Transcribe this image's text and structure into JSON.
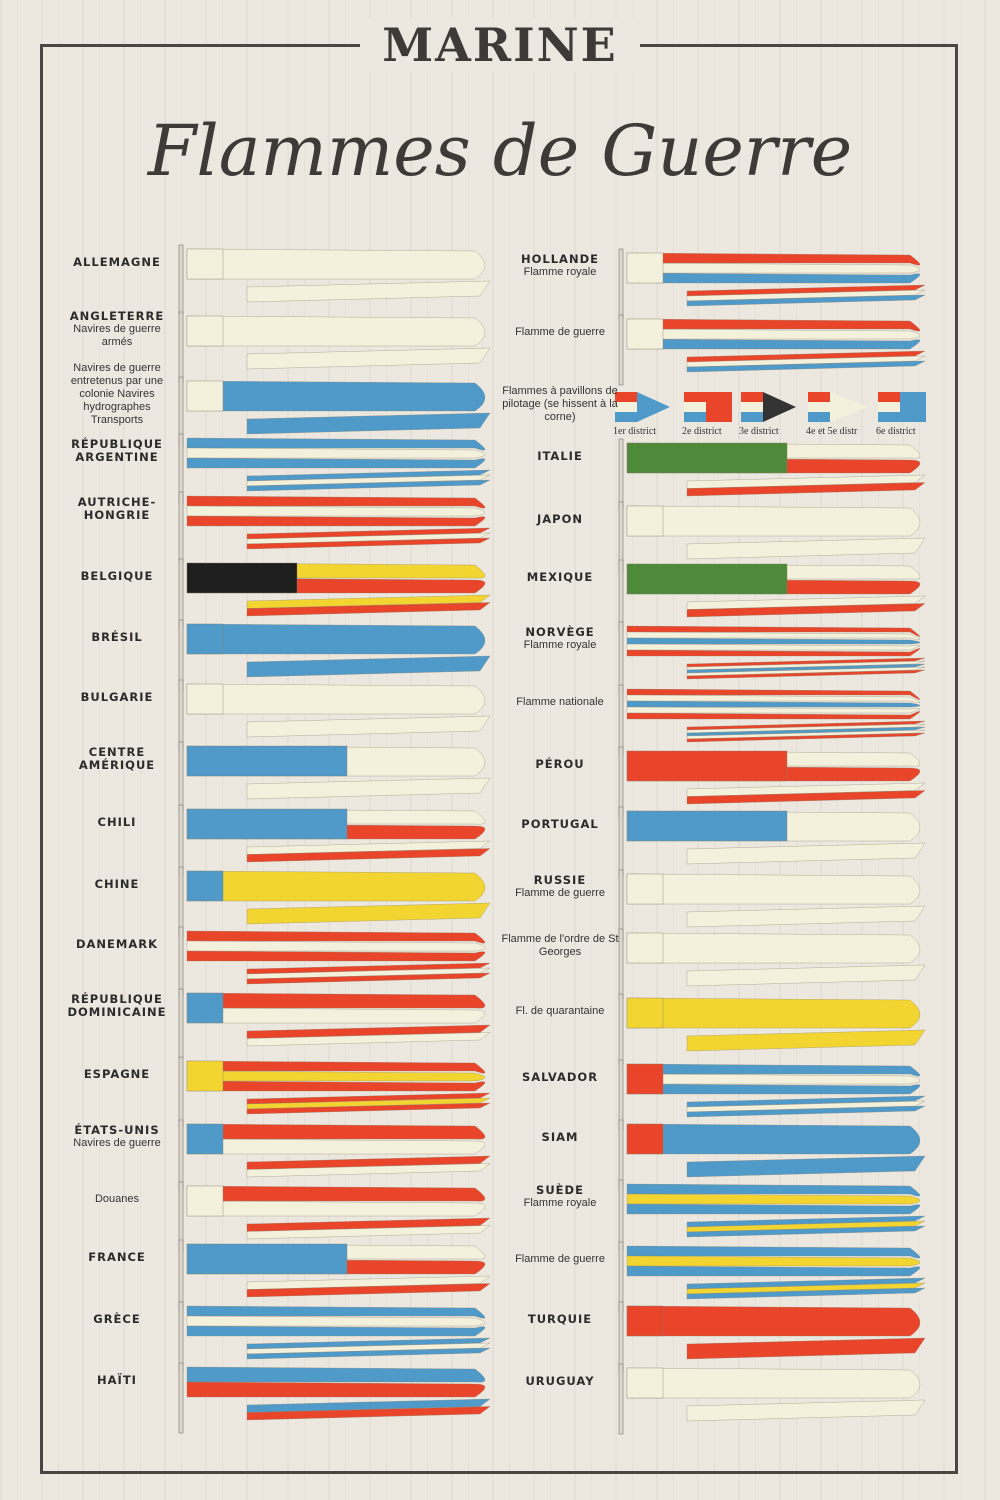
{
  "title": "MARINE",
  "subtitle": "Flammes de Guerre",
  "colors": {
    "red": "#e8452a",
    "blue": "#4f9ac9",
    "white": "#f3f0dc",
    "yellow": "#f2d531",
    "green": "#4e8a3a",
    "black": "#1e1e1e"
  },
  "left": [
    {
      "main": "ALLEMAGNE",
      "sub": "",
      "hoist": "white",
      "stripes": [
        "white"
      ]
    },
    {
      "main": "ANGLETERRE",
      "sub": "Navires de guerre armés",
      "hoist": "white",
      "stripes": [
        "white"
      ]
    },
    {
      "main": "",
      "sub": "Navires de guerre entretenus par une colonie Navires hydrographes Transports",
      "hoist": "white",
      "stripes": [
        "blue"
      ]
    },
    {
      "main": "RÉPUBLIQUE ARGENTINE",
      "sub": "",
      "hoist": "blue",
      "stripes": [
        "blue",
        "white",
        "blue"
      ]
    },
    {
      "main": "AUTRICHE-HONGRIE",
      "sub": "",
      "hoist": "red",
      "stripes": [
        "red",
        "white",
        "red"
      ]
    },
    {
      "main": "BELGIQUE",
      "sub": "",
      "hoist": "black",
      "stripes": [
        "yellow",
        "red"
      ]
    },
    {
      "main": "BRÉSIL",
      "sub": "",
      "hoist": "blue",
      "stripes": [
        "blue"
      ]
    },
    {
      "main": "BULGARIE",
      "sub": "",
      "hoist": "white",
      "stripes": [
        "white"
      ]
    },
    {
      "main": "CENTRE AMÉRIQUE",
      "sub": "",
      "hoist": "blue",
      "stripes": [
        "white"
      ]
    },
    {
      "main": "CHILI",
      "sub": "",
      "hoist": "blue",
      "stripes": [
        "white",
        "red"
      ]
    },
    {
      "main": "CHINE",
      "sub": "",
      "hoist": "blue",
      "stripes": [
        "yellow"
      ]
    },
    {
      "main": "DANEMARK",
      "sub": "",
      "hoist": "red",
      "stripes": [
        "red",
        "white",
        "red"
      ]
    },
    {
      "main": "RÉPUBLIQUE DOMINICAINE",
      "sub": "",
      "hoist": "blue",
      "stripes": [
        "red",
        "white"
      ]
    },
    {
      "main": "ESPAGNE",
      "sub": "",
      "hoist": "yellow",
      "stripes": [
        "red",
        "yellow",
        "red"
      ]
    },
    {
      "main": "ÉTATS-UNIS",
      "sub": "Navires de guerre",
      "hoist": "blue",
      "stripes": [
        "red",
        "white"
      ]
    },
    {
      "main": "",
      "sub": "Douanes",
      "hoist": "white",
      "stripes": [
        "red",
        "white"
      ]
    },
    {
      "main": "FRANCE",
      "sub": "",
      "hoist": "blue",
      "stripes": [
        "white",
        "red"
      ]
    },
    {
      "main": "GRÈCE",
      "sub": "",
      "hoist": "blue",
      "stripes": [
        "blue",
        "white",
        "blue"
      ]
    },
    {
      "main": "HAÏTI",
      "sub": "",
      "hoist": "blue",
      "stripes": [
        "blue",
        "red"
      ]
    }
  ],
  "right": [
    {
      "main": "HOLLANDE",
      "sub": "Flamme royale",
      "hoist": "white",
      "stripes": [
        "red",
        "white",
        "blue"
      ]
    },
    {
      "main": "",
      "sub": "Flamme de guerre",
      "hoist": "white",
      "stripes": [
        "red",
        "white",
        "blue"
      ]
    },
    {
      "main": "",
      "sub": "Flammes à pavillons de pilotage (se hissent à la corne)",
      "hoist": "",
      "stripes": []
    },
    {
      "main": "ITALIE",
      "sub": "",
      "hoist": "green",
      "stripes": [
        "white",
        "red"
      ]
    },
    {
      "main": "JAPON",
      "sub": "",
      "hoist": "white",
      "stripes": [
        "white"
      ]
    },
    {
      "main": "MEXIQUE",
      "sub": "",
      "hoist": "green",
      "stripes": [
        "white",
        "red"
      ]
    },
    {
      "main": "NORVÈGE",
      "sub": "Flamme royale",
      "hoist": "red",
      "stripes": [
        "red",
        "white",
        "blue",
        "white",
        "red"
      ]
    },
    {
      "main": "",
      "sub": "Flamme nationale",
      "hoist": "red",
      "stripes": [
        "red",
        "white",
        "blue",
        "white",
        "red"
      ]
    },
    {
      "main": "PÉROU",
      "sub": "",
      "hoist": "red",
      "stripes": [
        "white",
        "red"
      ]
    },
    {
      "main": "PORTUGAL",
      "sub": "",
      "hoist": "blue",
      "stripes": [
        "white"
      ]
    },
    {
      "main": "RUSSIE",
      "sub": "Flamme de guerre",
      "hoist": "white",
      "stripes": [
        "white"
      ]
    },
    {
      "main": "",
      "sub": "Flamme de l'ordre de St Georges",
      "hoist": "white",
      "stripes": [
        "white"
      ]
    },
    {
      "main": "",
      "sub": "Fl. de quarantaine",
      "hoist": "yellow",
      "stripes": [
        "yellow"
      ]
    },
    {
      "main": "SALVADOR",
      "sub": "",
      "hoist": "red",
      "stripes": [
        "blue",
        "white",
        "blue"
      ]
    },
    {
      "main": "SIAM",
      "sub": "",
      "hoist": "red",
      "stripes": [
        "blue"
      ]
    },
    {
      "main": "SUÈDE",
      "sub": "Flamme royale",
      "hoist": "blue",
      "stripes": [
        "blue",
        "yellow",
        "blue"
      ]
    },
    {
      "main": "",
      "sub": "Flamme de guerre",
      "hoist": "blue",
      "stripes": [
        "blue",
        "yellow",
        "blue"
      ]
    },
    {
      "main": "TURQUIE",
      "sub": "",
      "hoist": "red",
      "stripes": [
        "red"
      ]
    },
    {
      "main": "URUGUAY",
      "sub": "",
      "hoist": "white",
      "stripes": [
        "white"
      ]
    }
  ],
  "pilot_districts": [
    "1er district",
    "2e district",
    "3e district",
    "4e et 5e distr",
    "6e district"
  ]
}
